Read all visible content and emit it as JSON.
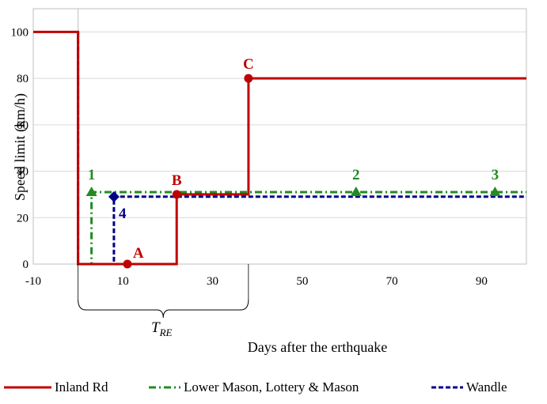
{
  "chart_data": {
    "type": "line",
    "xlabel": "Days after the erthquake",
    "ylabel": "Speed limit (km/h)",
    "xlim": [
      -10,
      100
    ],
    "ylim": [
      0,
      110
    ],
    "x_ticks": [
      -10,
      10,
      30,
      50,
      70,
      90
    ],
    "y_ticks": [
      0,
      20,
      40,
      60,
      80,
      100
    ],
    "grid": "horizontal",
    "legend_position": "bottom",
    "interval_label": "T_RE",
    "interval": [
      0,
      38
    ],
    "series": [
      {
        "name": "Inland Rd",
        "style": "solid",
        "color": "#c00000",
        "points": [
          [
            -10,
            100
          ],
          [
            0,
            100
          ],
          [
            0,
            0
          ],
          [
            22,
            0
          ],
          [
            22,
            30
          ],
          [
            38,
            30
          ],
          [
            38,
            80
          ],
          [
            100,
            80
          ]
        ]
      },
      {
        "name": "Lower Mason, Lottery & Mason",
        "style": "dashdot",
        "color": "#228b22",
        "points": [
          [
            0,
            100
          ],
          [
            0,
            0
          ],
          [
            3,
            0
          ],
          [
            3,
            31
          ],
          [
            100,
            31
          ]
        ]
      },
      {
        "name": "Wandle",
        "style": "dashed",
        "color": "#00008b",
        "points": [
          [
            0,
            100
          ],
          [
            0,
            0
          ],
          [
            8,
            0
          ],
          [
            8,
            29
          ],
          [
            100,
            29
          ]
        ]
      }
    ],
    "annotations": [
      {
        "label": "A",
        "x": 11,
        "y": 0,
        "marker": "circle",
        "color": "#c00000"
      },
      {
        "label": "B",
        "x": 22,
        "y": 30,
        "marker": "circle",
        "color": "#c00000"
      },
      {
        "label": "C",
        "x": 38,
        "y": 80,
        "marker": "circle",
        "color": "#c00000"
      },
      {
        "label": "1",
        "x": 3,
        "y": 31,
        "marker": "triangle",
        "color": "#228b22"
      },
      {
        "label": "2",
        "x": 62,
        "y": 31,
        "marker": "triangle",
        "color": "#228b22"
      },
      {
        "label": "3",
        "x": 93,
        "y": 31,
        "marker": "triangle",
        "color": "#228b22"
      },
      {
        "label": "4",
        "x": 8,
        "y": 29,
        "marker": "diamond",
        "color": "#00008b"
      }
    ]
  }
}
